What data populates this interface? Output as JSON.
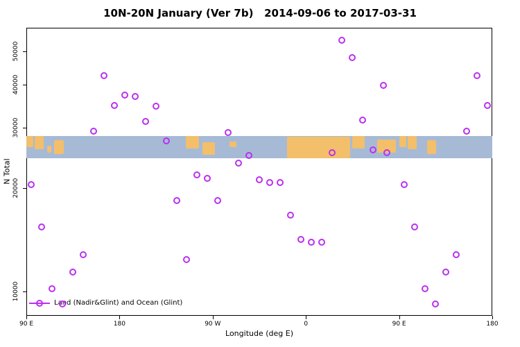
{
  "title": "10N-20N January (Ver 7b)   2014-09-06 to 2017-03-31",
  "axes": {
    "xlabel": "Longitude (deg E)",
    "ylabel": "N Total",
    "x_ticks": [
      {
        "lon": 90,
        "label": "90 E"
      },
      {
        "lon": 180,
        "label": "180"
      },
      {
        "lon": 270,
        "label": "90 W"
      },
      {
        "lon": 360,
        "label": "0"
      },
      {
        "lon": 450,
        "label": "90 E"
      },
      {
        "lon": 540,
        "label": "180"
      }
    ],
    "y_ticks": [
      "10000",
      "20000",
      "30000",
      "40000",
      "50000"
    ]
  },
  "legend": {
    "label": "Land (Nadir&Glint) and Ocean (Glint)",
    "position": "bottom-left"
  },
  "colors": {
    "point": "#bb2ff0",
    "ocean": "#a6bad6",
    "land": "#f3bf6a",
    "axis": "#000000"
  },
  "chart_data": {
    "type": "scatter",
    "title": "10N-20N January (Ver 7b)   2014-09-06 to 2017-03-31",
    "xlabel": "Longitude (deg E)",
    "ylabel": "N Total",
    "x_range": [
      90,
      540
    ],
    "y_range": [
      8500,
      58600
    ],
    "y_scale": "log",
    "grid": false,
    "legend_position": "bottom-left",
    "series_name": "Land (Nadir&Glint) and Ocean (Glint)",
    "points": [
      [
        95,
        20500
      ],
      [
        105,
        15400
      ],
      [
        115,
        10200
      ],
      [
        125,
        9200
      ],
      [
        135,
        11400
      ],
      [
        145,
        12800
      ],
      [
        155,
        29300
      ],
      [
        165,
        42500
      ],
      [
        175,
        34800
      ],
      [
        185,
        37400
      ],
      [
        195,
        36900
      ],
      [
        205,
        31200
      ],
      [
        215,
        34600
      ],
      [
        225,
        27400
      ],
      [
        235,
        18400
      ],
      [
        245,
        12400
      ],
      [
        255,
        21900
      ],
      [
        265,
        21400
      ],
      [
        275,
        18400
      ],
      [
        285,
        29000
      ],
      [
        295,
        23700
      ],
      [
        305,
        24900
      ],
      [
        315,
        21200
      ],
      [
        325,
        20800
      ],
      [
        335,
        20800
      ],
      [
        345,
        16700
      ],
      [
        355,
        14200
      ],
      [
        365,
        13900
      ],
      [
        375,
        13900
      ],
      [
        385,
        25400
      ],
      [
        395,
        54000
      ],
      [
        405,
        48000
      ],
      [
        415,
        31500
      ],
      [
        425,
        25800
      ],
      [
        435,
        39800
      ],
      [
        438,
        25400
      ],
      [
        455,
        20500
      ],
      [
        465,
        15400
      ],
      [
        475,
        10200
      ],
      [
        485,
        9200
      ],
      [
        495,
        11400
      ],
      [
        505,
        12800
      ],
      [
        515,
        29300
      ],
      [
        525,
        42500
      ],
      [
        535,
        34800
      ]
    ],
    "map_band": {
      "description": "world-map strip of the 10N-20N latitude band (ocean blue, land orange)",
      "y_range": [
        24400,
        28400
      ],
      "land_segments": [
        [
          90,
          97,
          0.0,
          0.5
        ],
        [
          98,
          107,
          0.0,
          0.6
        ],
        [
          110,
          114,
          0.45,
          0.75
        ],
        [
          117,
          126,
          0.2,
          0.8
        ],
        [
          244,
          257,
          0.0,
          0.55
        ],
        [
          260,
          272,
          0.3,
          0.85
        ],
        [
          286,
          293,
          0.25,
          0.5
        ],
        [
          342,
          403,
          0.05,
          1.0
        ],
        [
          405,
          417,
          0.0,
          0.55
        ],
        [
          429,
          447,
          0.15,
          0.75
        ],
        [
          450,
          457,
          0.0,
          0.5
        ],
        [
          458,
          467,
          0.0,
          0.6
        ],
        [
          477,
          486,
          0.2,
          0.8
        ]
      ]
    }
  }
}
